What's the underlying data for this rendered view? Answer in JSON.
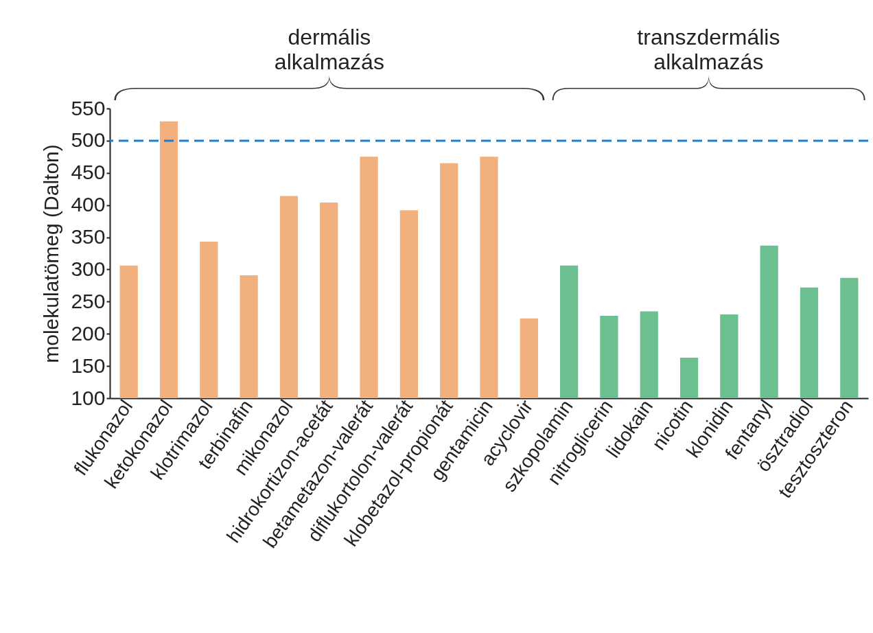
{
  "chart_data": {
    "type": "bar",
    "ylabel": "molekulatömeg (Dalton)",
    "categories": [
      "flukonazol",
      "ketokonazol",
      "klotrimazol",
      "terbinafin",
      "mikonazol",
      "hidrokortizon-acetát",
      "betametazon-valerát",
      "diflukortolon-valerát",
      "klobetazol-propionát",
      "gentamicin",
      "acyclovir",
      "szkopolamin",
      "nitroglicerin",
      "lidokain",
      "nicotin",
      "klonidin",
      "fentanyl",
      "ösztradiol",
      "tesztoszteron"
    ],
    "values": [
      306,
      530,
      343,
      291,
      414,
      404,
      475,
      392,
      465,
      475,
      224,
      306,
      228,
      235,
      163,
      230,
      337,
      272,
      287
    ],
    "colors": [
      "#f2b07e",
      "#f2b07e",
      "#f2b07e",
      "#f2b07e",
      "#f2b07e",
      "#f2b07e",
      "#f2b07e",
      "#f2b07e",
      "#f2b07e",
      "#f2b07e",
      "#f2b07e",
      "#6cc08f",
      "#6cc08f",
      "#6cc08f",
      "#6cc08f",
      "#6cc08f",
      "#6cc08f",
      "#6cc08f",
      "#6cc08f"
    ],
    "ylim": [
      100,
      550
    ],
    "yticks": [
      100,
      150,
      200,
      250,
      300,
      350,
      400,
      450,
      500,
      550
    ],
    "ref_lines": [
      {
        "axis": "y",
        "value": 500,
        "color": "#1a7fd0",
        "line_style": "dashed"
      }
    ],
    "annotations": [
      "dermális alkalmazás",
      "transzdermális alkalmazás"
    ]
  }
}
